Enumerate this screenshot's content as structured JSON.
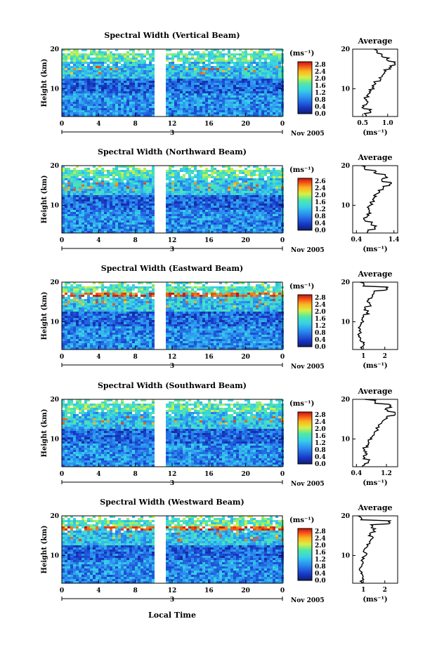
{
  "figure": {
    "colorbar_unit": "(ms⁻¹)",
    "colorbar_ticks": [
      "2.8",
      "2.4",
      "2.0",
      "1.6",
      "1.2",
      "0.8",
      "0.4",
      "0.0"
    ],
    "colorbar_ticks_alt": [
      "2.6",
      "2.4",
      "2.0",
      "1.6",
      "1.2",
      "0.8",
      "0.4",
      "0.0"
    ],
    "date_label": "Nov 2005",
    "day_label": "3",
    "ylabel": "Height (km)",
    "xlabel": "Local Time",
    "avg_title": "Average",
    "avg_unit": "(ms⁻¹)"
  },
  "chart_data": [
    {
      "type": "heatmap",
      "title": "Spectral Width (Vertical Beam)",
      "xlabel": "",
      "ylabel": "Height (km)",
      "x_ticks": [
        "0",
        "4",
        "8",
        "12",
        "16",
        "20",
        "0"
      ],
      "y_ticks": [
        "20",
        "10"
      ],
      "xlim": [
        0,
        24
      ],
      "ylim": [
        3,
        20
      ],
      "colorbar_range": [
        0.0,
        2.8
      ],
      "data_gaps_hours": [
        [
          5.9,
          6.1
        ],
        [
          10.0,
          11.2
        ]
      ],
      "average_profile": {
        "xticks": [
          "0.5",
          "1.0"
        ],
        "xlim": [
          0.3,
          1.2
        ],
        "heights_km": [
          3,
          4,
          5,
          6,
          7,
          8,
          9,
          10,
          11,
          12,
          13,
          14,
          15,
          16,
          17,
          18,
          19,
          20
        ],
        "values": [
          0.55,
          0.65,
          0.5,
          0.6,
          0.55,
          0.6,
          0.65,
          0.7,
          0.75,
          0.85,
          0.9,
          0.95,
          1.05,
          1.15,
          1.0,
          0.9,
          0.8,
          0.7
        ]
      }
    },
    {
      "type": "heatmap",
      "title": "Spectral Width (Northward Beam)",
      "xlabel": "",
      "ylabel": "Height (km)",
      "x_ticks": [
        "0",
        "4",
        "8",
        "12",
        "16",
        "20",
        "0"
      ],
      "y_ticks": [
        "20",
        "10"
      ],
      "xlim": [
        0,
        24
      ],
      "ylim": [
        3,
        20
      ],
      "colorbar_range": [
        0.0,
        2.6
      ],
      "data_gaps_hours": [
        [
          5.9,
          6.1
        ],
        [
          10.0,
          11.2
        ]
      ],
      "average_profile": {
        "xticks": [
          "0.4",
          "1.4"
        ],
        "xlim": [
          0.3,
          1.5
        ],
        "heights_km": [
          3,
          4,
          5,
          6,
          7,
          8,
          9,
          10,
          11,
          12,
          13,
          14,
          15,
          16,
          17,
          18,
          19,
          20
        ],
        "values": [
          0.7,
          0.9,
          0.8,
          0.6,
          0.7,
          0.75,
          0.7,
          0.8,
          0.85,
          0.9,
          1.0,
          1.1,
          1.3,
          1.1,
          1.2,
          0.9,
          0.6,
          0.5
        ]
      }
    },
    {
      "type": "heatmap",
      "title": "Spectral Width (Eastward Beam)",
      "xlabel": "",
      "ylabel": "Height (km)",
      "x_ticks": [
        "0",
        "4",
        "8",
        "12",
        "16",
        "20",
        "0"
      ],
      "y_ticks": [
        "20",
        "10"
      ],
      "xlim": [
        0,
        24
      ],
      "ylim": [
        3,
        20
      ],
      "colorbar_range": [
        0.0,
        2.8
      ],
      "data_gaps_hours": [
        [
          5.9,
          6.1
        ],
        [
          10.0,
          11.2
        ]
      ],
      "average_profile": {
        "xticks": [
          "1",
          "2"
        ],
        "xlim": [
          0.5,
          2.6
        ],
        "heights_km": [
          3,
          4,
          5,
          6,
          7,
          8,
          9,
          10,
          11,
          12,
          13,
          14,
          15,
          16,
          17,
          18,
          19,
          20
        ],
        "values": [
          0.9,
          1.0,
          0.85,
          0.8,
          0.85,
          0.8,
          0.9,
          0.95,
          1.0,
          1.2,
          1.1,
          1.3,
          1.2,
          1.4,
          1.5,
          2.1,
          1.0,
          0.8
        ]
      }
    },
    {
      "type": "heatmap",
      "title": "Spectral Width (Southward Beam)",
      "xlabel": "",
      "ylabel": "Height (km)",
      "x_ticks": [
        "0",
        "4",
        "8",
        "12",
        "16",
        "20",
        "0"
      ],
      "y_ticks": [
        "20",
        "10"
      ],
      "xlim": [
        0,
        24
      ],
      "ylim": [
        3,
        20
      ],
      "colorbar_range": [
        0.0,
        2.8
      ],
      "data_gaps_hours": [
        [
          5.9,
          6.1
        ],
        [
          10.0,
          11.2
        ]
      ],
      "average_profile": {
        "xticks": [
          "0.4",
          "1.2"
        ],
        "xlim": [
          0.3,
          1.5
        ],
        "heights_km": [
          3,
          4,
          5,
          6,
          7,
          8,
          9,
          10,
          11,
          12,
          13,
          14,
          15,
          16,
          17,
          18,
          19,
          20
        ],
        "values": [
          0.6,
          0.75,
          0.6,
          0.65,
          0.6,
          0.7,
          0.75,
          0.8,
          0.85,
          0.95,
          1.0,
          1.1,
          1.2,
          1.4,
          1.2,
          1.3,
          0.9,
          0.6
        ]
      }
    },
    {
      "type": "heatmap",
      "title": "Spectral Width (Westward Beam)",
      "xlabel": "Local Time",
      "ylabel": "Height (km)",
      "x_ticks": [
        "0",
        "4",
        "8",
        "12",
        "16",
        "20",
        "0"
      ],
      "y_ticks": [
        "20",
        "10"
      ],
      "xlim": [
        0,
        24
      ],
      "ylim": [
        3,
        20
      ],
      "colorbar_range": [
        0.0,
        2.8
      ],
      "data_gaps_hours": [
        [
          5.9,
          6.1
        ],
        [
          10.0,
          11.2
        ]
      ],
      "average_profile": {
        "xticks": [
          "1",
          "2"
        ],
        "xlim": [
          0.5,
          2.6
        ],
        "heights_km": [
          3,
          4,
          5,
          6,
          7,
          8,
          9,
          10,
          11,
          12,
          13,
          14,
          15,
          16,
          17,
          18,
          19,
          20
        ],
        "values": [
          0.9,
          1.0,
          0.9,
          0.85,
          0.9,
          0.95,
          1.0,
          1.1,
          1.05,
          1.2,
          1.3,
          1.4,
          1.3,
          1.5,
          1.4,
          2.2,
          0.9,
          0.7
        ]
      }
    }
  ]
}
